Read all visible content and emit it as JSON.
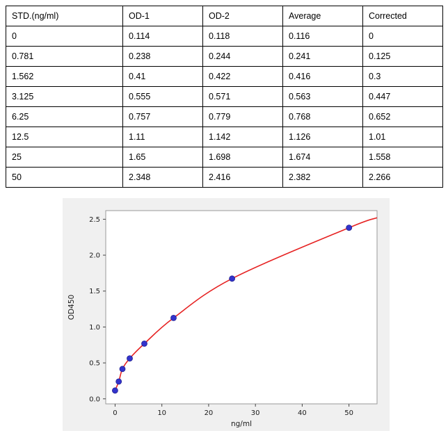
{
  "table": {
    "columns": [
      "STD.(ng/ml)",
      "OD-1",
      "OD-2",
      "Average",
      "Corrected"
    ],
    "rows": [
      [
        "0",
        "0.114",
        "0.118",
        "0.116",
        "0"
      ],
      [
        "0.781",
        "0.238",
        "0.244",
        "0.241",
        "0.125"
      ],
      [
        "1.562",
        "0.41",
        "0.422",
        "0.416",
        "0.3"
      ],
      [
        "3.125",
        "0.555",
        "0.571",
        "0.563",
        "0.447"
      ],
      [
        "6.25",
        "0.757",
        "0.779",
        "0.768",
        "0.652"
      ],
      [
        "12.5",
        "1.11",
        "1.142",
        "1.126",
        "1.01"
      ],
      [
        "25",
        "1.65",
        "1.698",
        "1.674",
        "1.558"
      ],
      [
        "50",
        "2.348",
        "2.416",
        "2.382",
        "2.266"
      ]
    ]
  },
  "chart_data": {
    "type": "scatter",
    "title": "",
    "xlabel": "ng/ml",
    "ylabel": "OD450",
    "x_ticks": [
      0,
      10,
      20,
      30,
      40,
      50
    ],
    "y_ticks": [
      0.0,
      0.5,
      1.0,
      1.5,
      2.0,
      2.5
    ],
    "xlim": [
      -2,
      56
    ],
    "ylim": [
      -0.07,
      2.62
    ],
    "grid": false,
    "legend_position": "none",
    "points": [
      [
        0,
        0.116
      ],
      [
        0.781,
        0.241
      ],
      [
        1.562,
        0.416
      ],
      [
        3.125,
        0.563
      ],
      [
        6.25,
        0.768
      ],
      [
        12.5,
        1.126
      ],
      [
        25,
        1.674
      ],
      [
        50,
        2.382
      ]
    ],
    "fit_curve": {
      "color": "#e62222",
      "extends_to": [
        56,
        2.52
      ]
    },
    "point_color": "#3333cc",
    "point_edge_color": "#202090",
    "plot_bg": "#ffffff",
    "panel_bg": "#f0f0f0",
    "frame_color": "#999999"
  }
}
